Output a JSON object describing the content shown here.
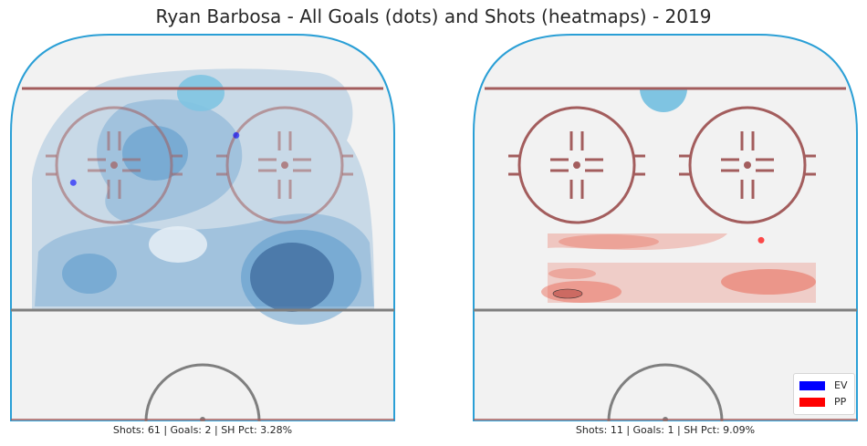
{
  "title": "Ryan Barbosa - All Goals (dots) and Shots (heatmaps) - 2019",
  "colors": {
    "ev": "#0000ff",
    "pp": "#ff0000",
    "rink_ice": "#f2f2f2",
    "rink_board": "#2a9fd6",
    "goal_line": "#a35d5d",
    "blue_line": "#7f7f7f",
    "crease": "#7fc4e2",
    "ev_heat": "#4a90c8",
    "pp_heat": "#e8604c"
  },
  "legend": {
    "placement": "lower-right",
    "items": [
      {
        "label": "EV",
        "color": "#0000ff"
      },
      {
        "label": "PP",
        "color": "#ff0000"
      }
    ]
  },
  "chart_data": [
    {
      "type": "heatmap",
      "panel": "EV",
      "caption": "Shots: 61 | Goals: 2 | SH Pct: 3.28%",
      "shots": 61,
      "goals": 2,
      "sh_pct": "3.28%",
      "goal_points": [
        {
          "x": 7,
          "y": 84
        },
        {
          "x": -27,
          "y": 70
        }
      ]
    },
    {
      "type": "heatmap",
      "panel": "PP",
      "caption": "Shots: 11 | Goals: 1 | SH Pct: 9.09%",
      "shots": 11,
      "goals": 1,
      "sh_pct": "9.09%",
      "goal_points": [
        {
          "x": 20,
          "y": 53
        }
      ]
    }
  ]
}
